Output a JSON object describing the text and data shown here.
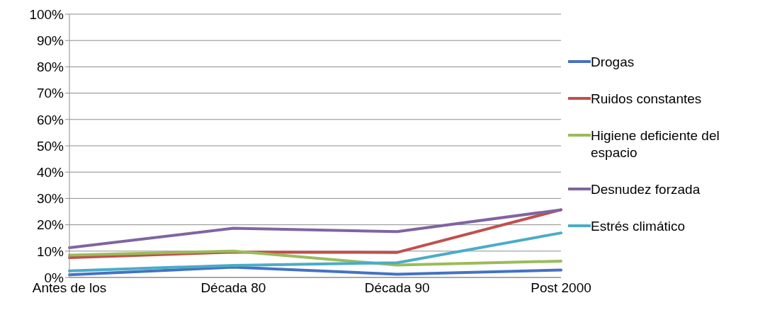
{
  "chart_data": {
    "type": "line",
    "categories": [
      "Antes de los",
      "Década 80",
      "Década 90",
      "Post 2000"
    ],
    "series": [
      {
        "name": "Drogas",
        "color": "#4472c4",
        "values": [
          1,
          3.9,
          1.2,
          2.8
        ]
      },
      {
        "name": "Ruidos constantes",
        "color": "#c0504d",
        "values": [
          7.5,
          9.6,
          9.5,
          25.7
        ]
      },
      {
        "name": "Higiene deficiente del espacio",
        "color": "#9bbb59",
        "values": [
          8.5,
          10,
          4.7,
          6.2
        ]
      },
      {
        "name": "Desnudez forzada",
        "color": "#8064a2",
        "values": [
          11.3,
          18.7,
          17.4,
          25.7
        ]
      },
      {
        "name": "Estrés climático",
        "color": "#4bacc6",
        "values": [
          2.5,
          4.6,
          5.6,
          16.9
        ]
      }
    ],
    "ylim": [
      0,
      100
    ],
    "yticks": [
      {
        "value": 0,
        "label": "0%"
      },
      {
        "value": 10,
        "label": "10%"
      },
      {
        "value": 20,
        "label": "20%"
      },
      {
        "value": 30,
        "label": "30%"
      },
      {
        "value": 40,
        "label": "40%"
      },
      {
        "value": 50,
        "label": "50%"
      },
      {
        "value": 60,
        "label": "60%"
      },
      {
        "value": 70,
        "label": "70%"
      },
      {
        "value": 80,
        "label": "80%"
      },
      {
        "value": 90,
        "label": "90%"
      },
      {
        "value": 100,
        "label": "100%"
      }
    ],
    "grid": "y",
    "legend": "right",
    "marker": "none",
    "line_style": "solid"
  }
}
